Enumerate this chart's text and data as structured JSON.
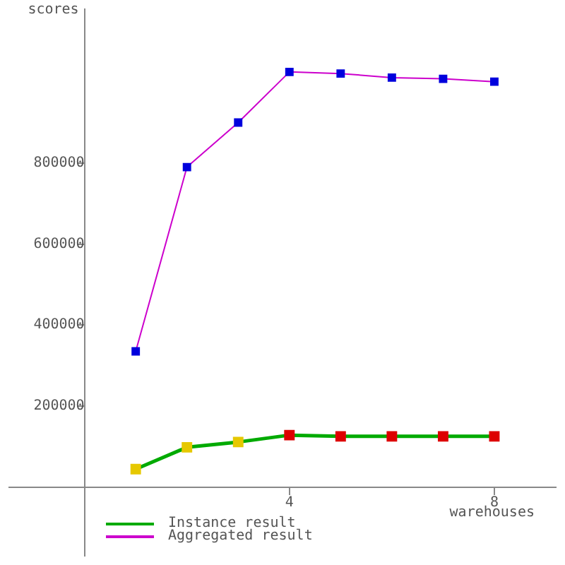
{
  "chart_data": {
    "type": "line",
    "xlabel": "warehouses",
    "ylabel": "scores",
    "x": [
      1,
      2,
      3,
      4,
      5,
      6,
      7,
      8
    ],
    "xlim": [
      -1.47,
      9.2
    ],
    "ylim": [
      -170000,
      1180000
    ],
    "xticks": [
      4,
      8
    ],
    "yticks": [
      200000,
      400000,
      600000,
      800000
    ],
    "series": [
      {
        "name": "Instance result",
        "color": "#00aa00",
        "colors": [
          "#e6c800",
          "#e6c800",
          "#e6c800",
          "#dd0000",
          "#dd0000",
          "#dd0000",
          "#dd0000",
          "#dd0000"
        ],
        "values": [
          44000,
          98000,
          111000,
          128000,
          125000,
          125000,
          125000,
          125000
        ]
      },
      {
        "name": "Aggregated result",
        "color": "#cc00cc",
        "colors": [
          "#0000dd",
          "#0000dd",
          "#0000dd",
          "#0000dd",
          "#0000dd",
          "#0000dd",
          "#0000dd",
          "#0000dd"
        ],
        "values": [
          335000,
          790000,
          900000,
          1025000,
          1021000,
          1011000,
          1008000,
          1001000
        ]
      }
    ],
    "grid": false,
    "legend": "bottom left",
    "marker": "square",
    "line_style": "solid"
  }
}
